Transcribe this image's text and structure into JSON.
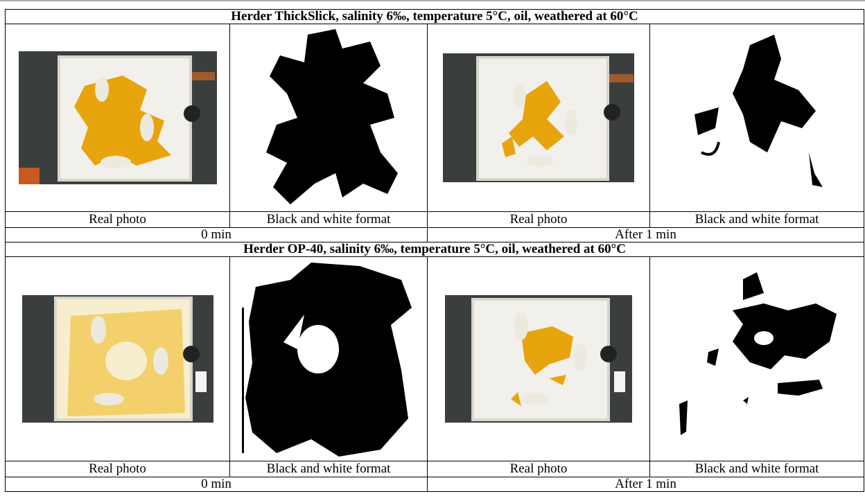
{
  "sections": [
    {
      "title": "Herder ThickSlick, salinity 6‰, temperature 5°C, oil, weathered at 60°C",
      "labels": [
        "Real photo",
        "Black and white format",
        "Real photo",
        "Black and white format"
      ],
      "time_left": "0 min",
      "time_right": "After 1 min"
    },
    {
      "title": "Herder OP-40, salinity 6‰, temperature 5°C, oil, weathered at 60°C",
      "labels": [
        "Real photo",
        "Black and white format",
        "Real photo",
        "Black and white format"
      ],
      "time_left": "0 min",
      "time_right": "After 1 min"
    }
  ],
  "colors": {
    "oil": "#e8a40c",
    "oil_light": "#f1c64a",
    "tray": "#f1f0ea",
    "floor": "#3a3f3d",
    "ink": "#000000"
  }
}
